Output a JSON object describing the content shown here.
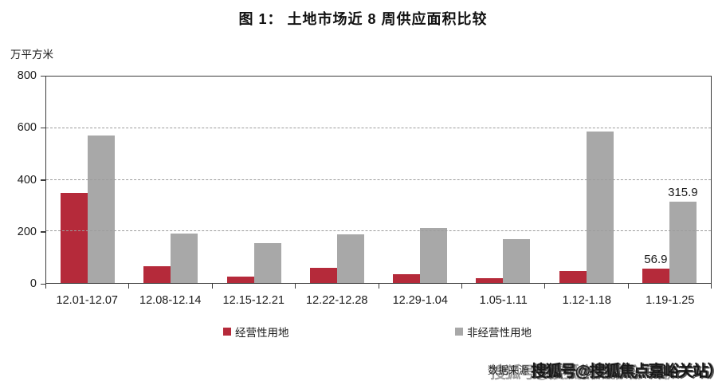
{
  "title": "图 1： 土地市场近 8 周供应面积比较",
  "source": {
    "label": "数据来源",
    "watermark": "搜狐号@搜狐焦点嘉峪关站）"
  },
  "colors": {
    "axis": "#3c3c3c",
    "grid": "#9c9c9c",
    "series_red": "#b52a3a",
    "series_gray": "#a8a8a8"
  },
  "chart_data": {
    "type": "bar",
    "title": "图 1： 土地市场近 8 周供应面积比较",
    "xlabel": "",
    "ylabel": "万平方米",
    "ylim": [
      0,
      800
    ],
    "yticks": [
      0,
      200,
      400,
      600,
      800
    ],
    "grid": "horizontal-dashed",
    "legend_position": "bottom",
    "categories": [
      "12.01-12.07",
      "12.08-12.14",
      "12.15-12.21",
      "12.22-12.28",
      "12.29-1.04",
      "1.05-1.11",
      "1.12-1.18",
      "1.19-1.25"
    ],
    "series": [
      {
        "name": "经营性用地",
        "color": "#b52a3a",
        "values": [
          348,
          65,
          25,
          60,
          35,
          20,
          45,
          56.9
        ],
        "point_labels": [
          "",
          "",
          "",
          "",
          "",
          "",
          "",
          "56.9"
        ]
      },
      {
        "name": "非经营性用地",
        "color": "#a8a8a8",
        "values": [
          570,
          192,
          155,
          188,
          213,
          170,
          587,
          315.9
        ],
        "point_labels": [
          "",
          "",
          "",
          "",
          "",
          "",
          "",
          "315.9"
        ]
      }
    ]
  }
}
